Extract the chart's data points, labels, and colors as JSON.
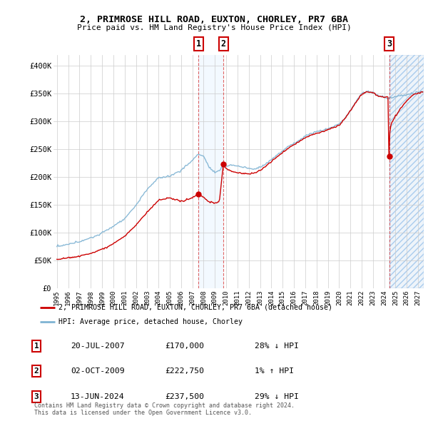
{
  "title": "2, PRIMROSE HILL ROAD, EUXTON, CHORLEY, PR7 6BA",
  "subtitle": "Price paid vs. HM Land Registry's House Price Index (HPI)",
  "ylim": [
    0,
    420000
  ],
  "yticks": [
    0,
    50000,
    100000,
    150000,
    200000,
    250000,
    300000,
    350000,
    400000
  ],
  "ytick_labels": [
    "£0",
    "£50K",
    "£100K",
    "£150K",
    "£200K",
    "£250K",
    "£300K",
    "£350K",
    "£400K"
  ],
  "xlim_start": 1994.7,
  "xlim_end": 2027.5,
  "xticks": [
    1995,
    1996,
    1997,
    1998,
    1999,
    2000,
    2001,
    2002,
    2003,
    2004,
    2005,
    2006,
    2007,
    2008,
    2009,
    2010,
    2011,
    2012,
    2013,
    2014,
    2015,
    2016,
    2017,
    2018,
    2019,
    2020,
    2021,
    2022,
    2023,
    2024,
    2025,
    2026,
    2027
  ],
  "sale1_date": "20-JUL-2007",
  "sale1_price": 170000,
  "sale1_pct": "28% ↓ HPI",
  "sale1_x": 2007.54,
  "sale2_date": "02-OCT-2009",
  "sale2_price": 222750,
  "sale2_pct": "1% ↑ HPI",
  "sale2_x": 2009.75,
  "sale3_date": "13-JUN-2024",
  "sale3_price": 237500,
  "sale3_pct": "29% ↓ HPI",
  "sale3_x": 2024.45,
  "legend_line1": "2, PRIMROSE HILL ROAD, EUXTON, CHORLEY, PR7 6BA (detached house)",
  "legend_line2": "HPI: Average price, detached house, Chorley",
  "footer": "Contains HM Land Registry data © Crown copyright and database right 2024.\nThis data is licensed under the Open Government Licence v3.0.",
  "red_color": "#cc0000",
  "blue_color": "#7fb3d3",
  "bg_color": "#ffffff",
  "grid_color": "#cccccc",
  "shade_color": "#ddeeff"
}
